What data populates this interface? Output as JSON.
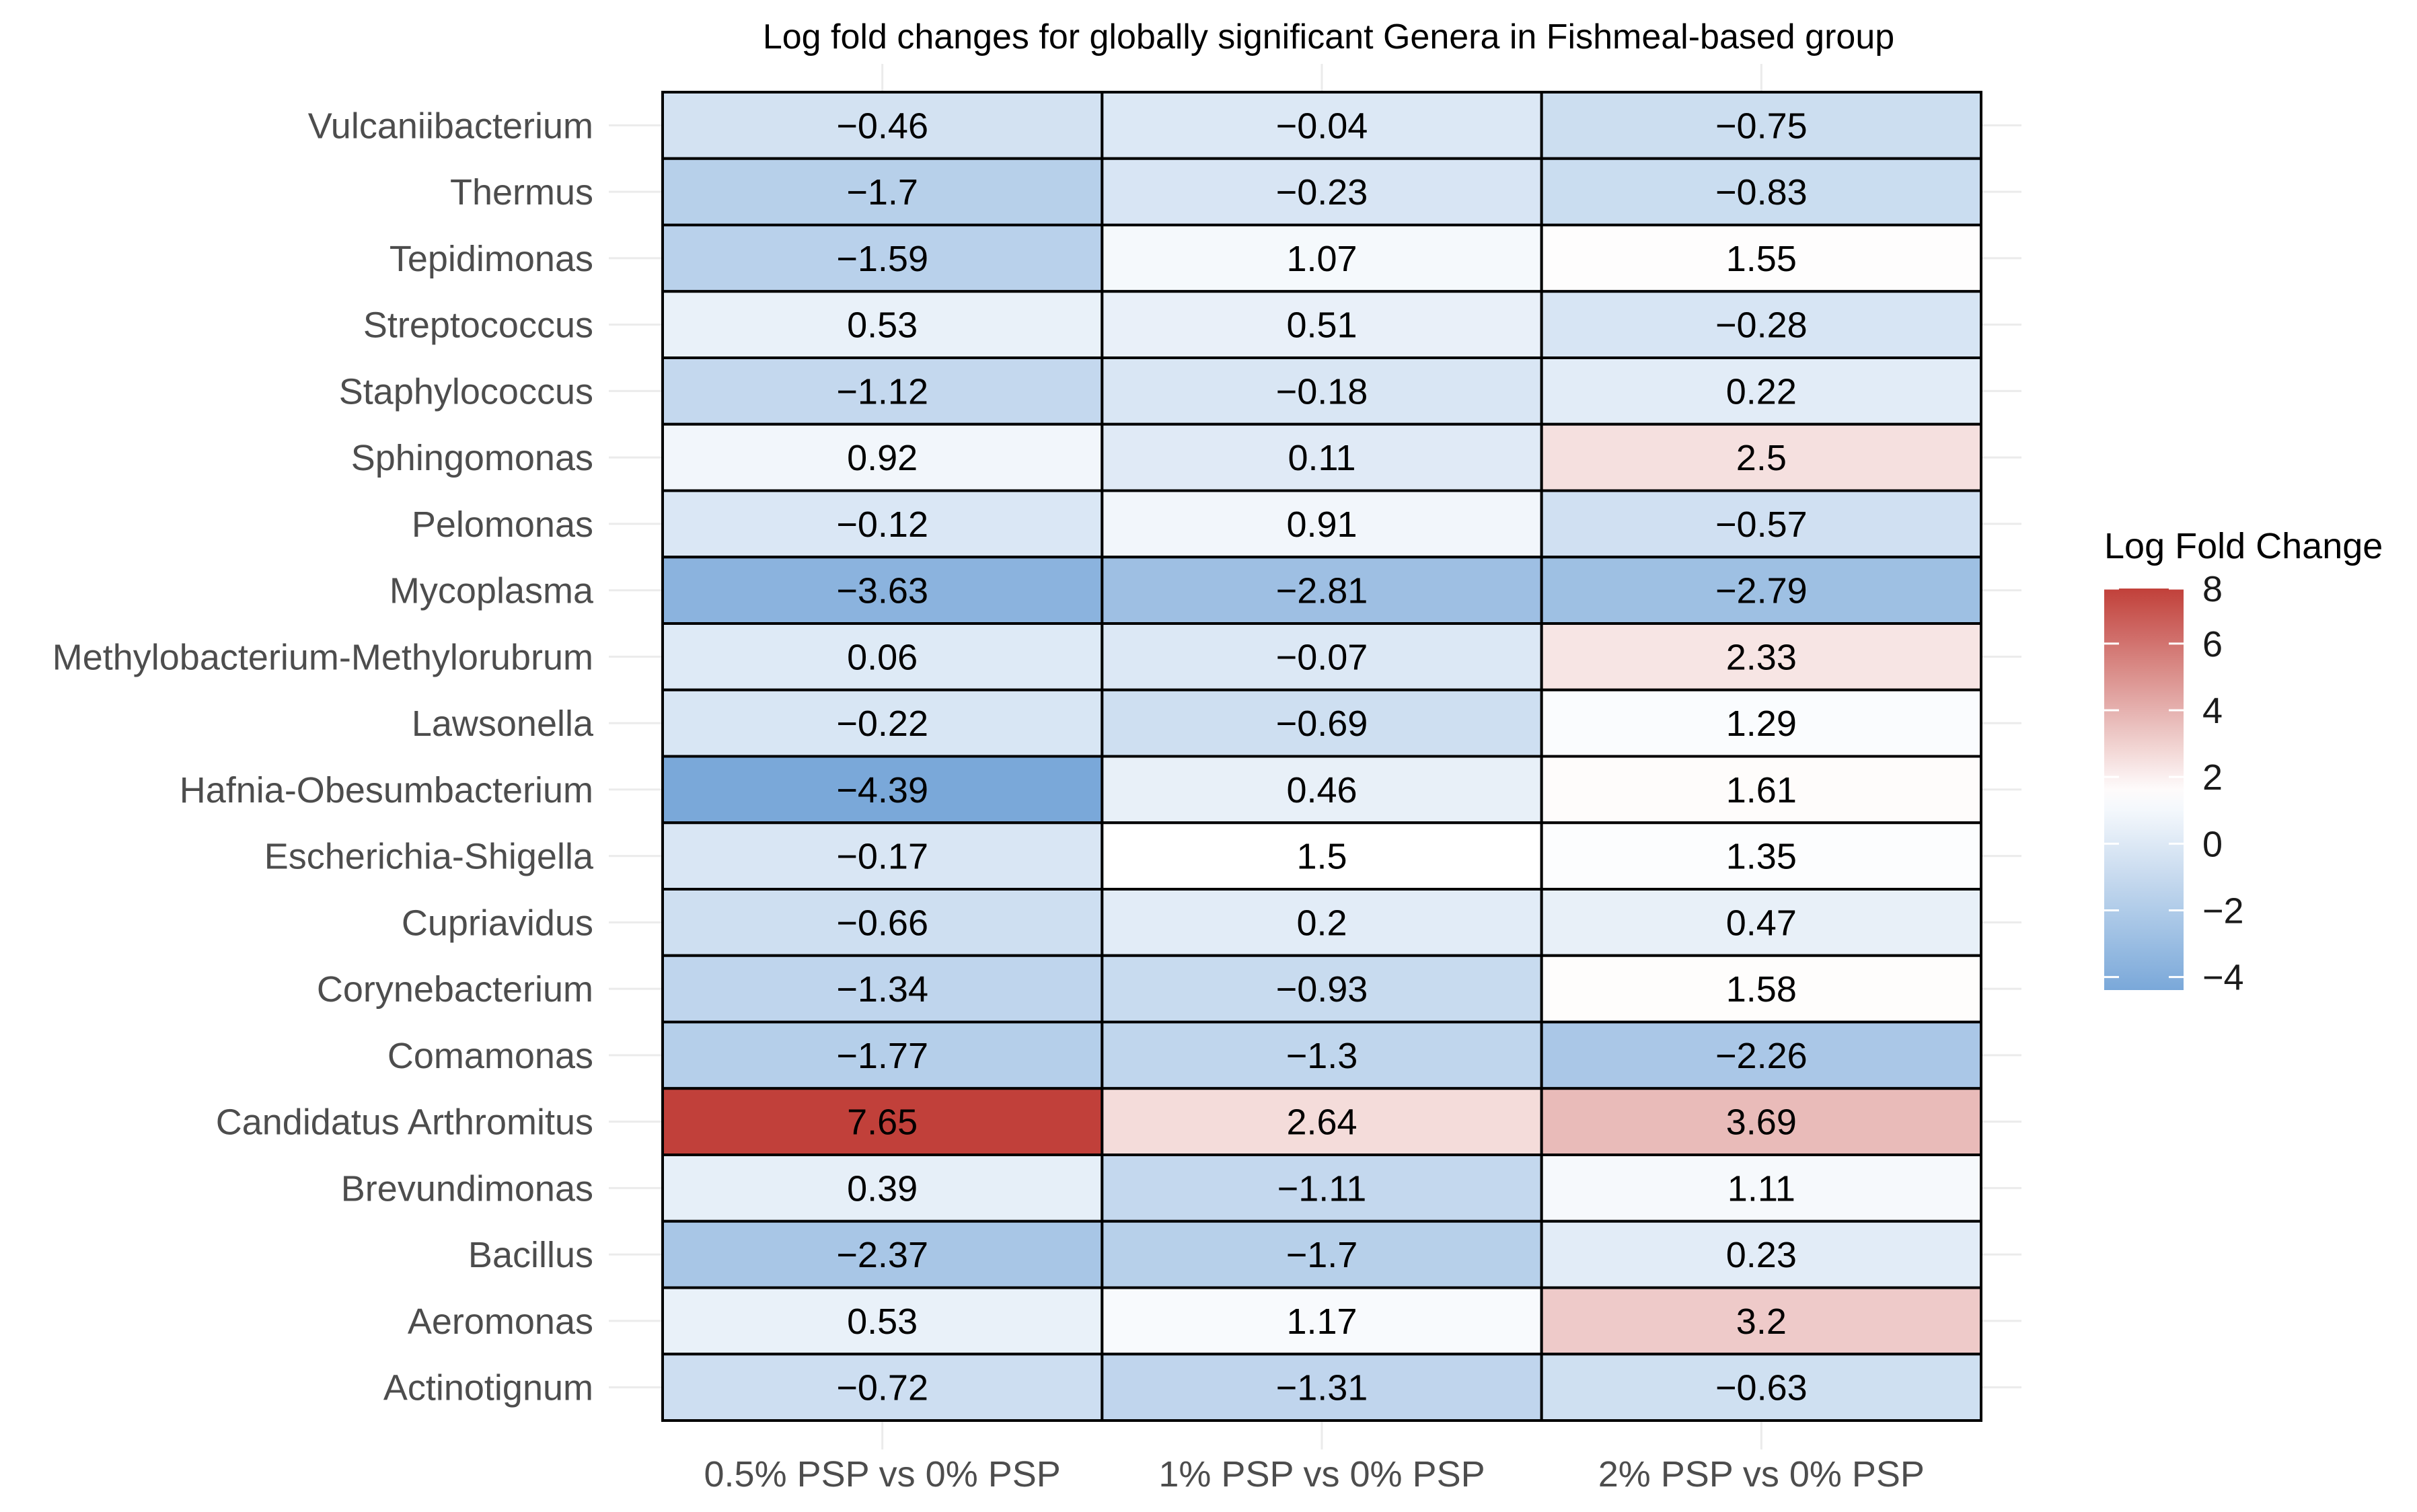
{
  "chart_data": {
    "type": "heatmap",
    "title": "Log fold changes for globally significant Genera in Fishmeal-based group",
    "xlabel": "",
    "ylabel": "",
    "columns": [
      "0.5% PSP vs 0% PSP",
      "1% PSP vs 0% PSP",
      "2% PSP vs 0% PSP"
    ],
    "rows": [
      "Vulcaniibacterium",
      "Thermus",
      "Tepidimonas",
      "Streptococcus",
      "Staphylococcus",
      "Sphingomonas",
      "Pelomonas",
      "Mycoplasma",
      "Methylobacterium-Methylorubrum",
      "Lawsonella",
      "Hafnia-Obesumbacterium",
      "Escherichia-Shigella",
      "Cupriavidus",
      "Corynebacterium",
      "Comamonas",
      "Candidatus Arthromitus",
      "Brevundimonas",
      "Bacillus",
      "Aeromonas",
      "Actinotignum"
    ],
    "values": [
      [
        -0.46,
        -0.04,
        -0.75
      ],
      [
        -1.7,
        -0.23,
        -0.83
      ],
      [
        -1.59,
        1.07,
        1.55
      ],
      [
        0.53,
        0.51,
        -0.28
      ],
      [
        -1.12,
        -0.18,
        0.22
      ],
      [
        0.92,
        0.11,
        2.5
      ],
      [
        -0.12,
        0.91,
        -0.57
      ],
      [
        -3.63,
        -2.81,
        -2.79
      ],
      [
        0.06,
        -0.07,
        2.33
      ],
      [
        -0.22,
        -0.69,
        1.29
      ],
      [
        -4.39,
        0.46,
        1.61
      ],
      [
        -0.17,
        1.5,
        1.35
      ],
      [
        -0.66,
        0.2,
        0.47
      ],
      [
        -1.34,
        -0.93,
        1.58
      ],
      [
        -1.77,
        -1.3,
        -2.26
      ],
      [
        7.65,
        2.64,
        3.69
      ],
      [
        0.39,
        -1.11,
        1.11
      ],
      [
        -2.37,
        -1.7,
        0.23
      ],
      [
        0.53,
        1.17,
        3.2
      ],
      [
        -0.72,
        -1.31,
        -0.63
      ]
    ],
    "value_labels": [
      [
        "−0.46",
        "−0.04",
        "−0.75"
      ],
      [
        "−1.7",
        "−0.23",
        "−0.83"
      ],
      [
        "−1.59",
        "1.07",
        "1.55"
      ],
      [
        "0.53",
        "0.51",
        "−0.28"
      ],
      [
        "−1.12",
        "−0.18",
        "0.22"
      ],
      [
        "0.92",
        "0.11",
        "2.5"
      ],
      [
        "−0.12",
        "0.91",
        "−0.57"
      ],
      [
        "−3.63",
        "−2.81",
        "−2.79"
      ],
      [
        "0.06",
        "−0.07",
        "2.33"
      ],
      [
        "−0.22",
        "−0.69",
        "1.29"
      ],
      [
        "−4.39",
        "0.46",
        "1.61"
      ],
      [
        "−0.17",
        "1.5",
        "1.35"
      ],
      [
        "−0.66",
        "0.2",
        "0.47"
      ],
      [
        "−1.34",
        "−0.93",
        "1.58"
      ],
      [
        "−1.77",
        "−1.3",
        "−2.26"
      ],
      [
        "7.65",
        "2.64",
        "3.69"
      ],
      [
        "0.39",
        "−1.11",
        "1.11"
      ],
      [
        "−2.37",
        "−1.7",
        "0.23"
      ],
      [
        "0.53",
        "1.17",
        "3.2"
      ],
      [
        "−0.72",
        "−1.31",
        "−0.63"
      ]
    ],
    "legend": {
      "title": "Log Fold Change",
      "position": "right",
      "range": [
        -4.39,
        7.65
      ],
      "ticks": [
        8,
        6,
        4,
        2,
        0,
        -2,
        -4
      ],
      "tick_labels": [
        "8",
        "6",
        "4",
        "2",
        "0",
        "−2",
        "−4"
      ],
      "midpoint": 1.5
    },
    "colors": {
      "low": "#7aa8d9",
      "mid": "#ffffff",
      "high": "#c1403a",
      "border": "#000000",
      "gridline": "#ebebeb",
      "axis_text": "#4d4d4d",
      "cell_text": "#000000"
    }
  }
}
